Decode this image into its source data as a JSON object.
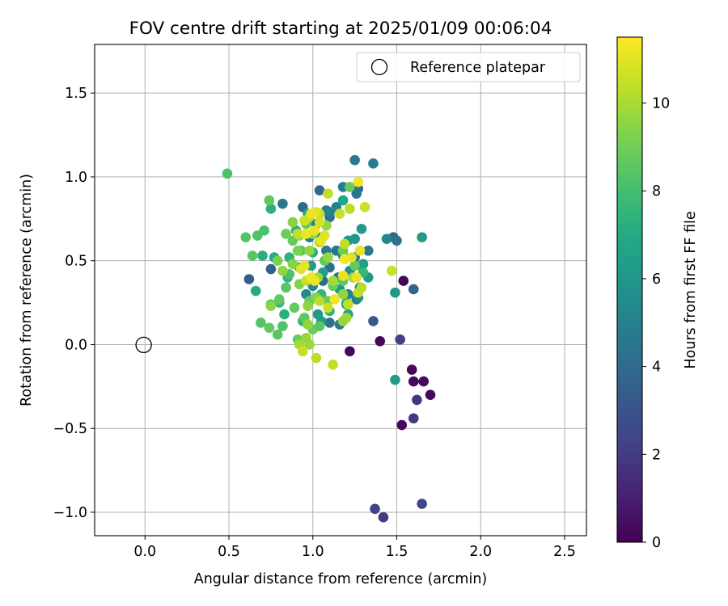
{
  "chart_data": {
    "type": "scatter",
    "title": "FOV centre drift starting at 2025/01/09 00:06:04",
    "xlabel": "Angular distance from reference (arcmin)",
    "ylabel": "Rotation from reference (arcmin)",
    "xlim": [
      -0.3,
      2.63
    ],
    "ylim": [
      -1.14,
      1.79
    ],
    "xticks": [
      0.0,
      0.5,
      1.0,
      1.5,
      2.0,
      2.5
    ],
    "yticks": [
      -1.0,
      -0.5,
      0.0,
      0.5,
      1.0,
      1.5
    ],
    "xtick_labels": [
      "0.0",
      "0.5",
      "1.0",
      "1.5",
      "2.0",
      "2.5"
    ],
    "ytick_labels": [
      "−1.0",
      "−0.5",
      "0.0",
      "0.5",
      "1.0",
      "1.5"
    ],
    "grid": true,
    "legend": {
      "position": "top-right",
      "entries": [
        "Reference platepar"
      ]
    },
    "reference_point": {
      "x": 0.0,
      "y": 0.0,
      "label": "Reference platepar"
    },
    "colormap": "viridis",
    "colorbar": {
      "label": "Hours from first FF file",
      "range": [
        0,
        11.5
      ],
      "ticks": [
        0,
        2,
        4,
        6,
        8,
        10
      ],
      "tick_labels": [
        "0",
        "2",
        "4",
        "6",
        "8",
        "10"
      ]
    },
    "points": [
      [
        1.54,
        0.38,
        0.2
      ],
      [
        1.4,
        0.02,
        0.2
      ],
      [
        1.22,
        -0.04,
        0.2
      ],
      [
        1.59,
        -0.15,
        0.3
      ],
      [
        1.6,
        -0.22,
        0.3
      ],
      [
        1.66,
        -0.22,
        0.3
      ],
      [
        1.7,
        -0.3,
        0.3
      ],
      [
        1.53,
        -0.48,
        0.3
      ],
      [
        1.62,
        -0.33,
        1.8
      ],
      [
        1.6,
        -0.44,
        1.9
      ],
      [
        1.52,
        0.03,
        2.2
      ],
      [
        1.37,
        -0.98,
        2.3
      ],
      [
        1.42,
        -1.03,
        2.0
      ],
      [
        1.65,
        -0.95,
        2.4
      ],
      [
        1.36,
        0.14,
        3.2
      ],
      [
        0.62,
        0.39,
        3.3
      ],
      [
        0.75,
        0.45,
        3.5
      ],
      [
        1.04,
        0.92,
        3.8
      ],
      [
        0.94,
        0.82,
        3.9
      ],
      [
        1.27,
        0.93,
        4.0
      ],
      [
        1.6,
        0.33,
        3.6
      ],
      [
        1.48,
        0.64,
        3.6
      ],
      [
        1.25,
        1.1,
        4.6
      ],
      [
        1.36,
        1.08,
        4.7
      ],
      [
        1.18,
        0.94,
        4.8
      ],
      [
        1.08,
        0.8,
        4.7
      ],
      [
        1.26,
        0.9,
        4.5
      ],
      [
        0.82,
        0.84,
        4.6
      ],
      [
        1.1,
        0.76,
        4.2
      ],
      [
        1.02,
        0.72,
        4.3
      ],
      [
        1.1,
        0.46,
        4.2
      ],
      [
        1.06,
        0.38,
        4.1
      ],
      [
        1.15,
        0.4,
        4.4
      ],
      [
        1.28,
        0.34,
        4.6
      ],
      [
        1.33,
        0.56,
        4.5
      ],
      [
        1.1,
        0.13,
        4.4
      ],
      [
        1.16,
        0.12,
        4.6
      ],
      [
        1.2,
        0.24,
        4.8
      ],
      [
        1.26,
        0.27,
        4.7
      ],
      [
        1.14,
        0.56,
        4.5
      ],
      [
        0.98,
        0.64,
        4.9
      ],
      [
        1.08,
        0.56,
        4.8
      ],
      [
        1.25,
        0.52,
        4.3
      ],
      [
        1.5,
        0.62,
        4.5
      ],
      [
        1.29,
        0.47,
        4.4
      ],
      [
        1.21,
        0.3,
        4.9
      ],
      [
        1.44,
        0.63,
        5.2
      ],
      [
        1.18,
        0.53,
        5.4
      ],
      [
        1.22,
        0.44,
        5.6
      ],
      [
        1.0,
        0.35,
        5.3
      ],
      [
        1.27,
        0.28,
        5.5
      ],
      [
        0.96,
        0.3,
        5.4
      ],
      [
        1.05,
        0.64,
        5.3
      ],
      [
        1.1,
        0.79,
        5.0
      ],
      [
        1.14,
        0.82,
        5.1
      ],
      [
        1.65,
        0.64,
        6.2
      ],
      [
        1.33,
        0.4,
        6.1
      ],
      [
        1.49,
        0.31,
        6.0
      ],
      [
        1.49,
        -0.21,
        6.3
      ],
      [
        1.21,
        0.62,
        6.0
      ],
      [
        1.29,
        0.69,
        6.2
      ],
      [
        1.25,
        0.63,
        6.1
      ],
      [
        1.3,
        0.48,
        6.4
      ],
      [
        1.05,
        0.14,
        6.3
      ],
      [
        1.03,
        0.18,
        6.2
      ],
      [
        0.99,
        0.47,
        6.5
      ],
      [
        1.06,
        0.43,
        6.4
      ],
      [
        1.16,
        0.33,
        6.2
      ],
      [
        1.21,
        0.18,
        6.6
      ],
      [
        0.97,
        0.78,
        6.7
      ],
      [
        1.18,
        0.86,
        6.8
      ],
      [
        0.66,
        0.32,
        7.0
      ],
      [
        0.83,
        0.18,
        7.2
      ],
      [
        0.75,
        0.81,
        7.3
      ],
      [
        0.77,
        0.52,
        7.1
      ],
      [
        0.86,
        0.52,
        7.4
      ],
      [
        0.92,
        0.46,
        7.3
      ],
      [
        0.94,
        0.14,
        7.5
      ],
      [
        0.8,
        0.25,
        7.6
      ],
      [
        1.1,
        0.2,
        7.4
      ],
      [
        1.05,
        0.3,
        7.5
      ],
      [
        1.2,
        0.25,
        7.3
      ],
      [
        1.3,
        0.43,
        7.6
      ],
      [
        0.7,
        0.53,
        7.2
      ],
      [
        0.85,
        0.4,
        7.5
      ],
      [
        0.9,
        0.68,
        7.4
      ],
      [
        1.0,
        0.55,
        7.2
      ],
      [
        0.49,
        1.02,
        8.2
      ],
      [
        0.6,
        0.64,
        8.4
      ],
      [
        0.64,
        0.53,
        8.5
      ],
      [
        0.67,
        0.65,
        8.3
      ],
      [
        0.71,
        0.68,
        8.2
      ],
      [
        0.74,
        0.86,
        8.6
      ],
      [
        0.75,
        0.24,
        8.4
      ],
      [
        0.82,
        0.11,
        8.3
      ],
      [
        0.84,
        0.34,
        8.5
      ],
      [
        0.86,
        0.42,
        8.2
      ],
      [
        0.74,
        0.1,
        8.6
      ],
      [
        0.69,
        0.13,
        8.4
      ],
      [
        0.8,
        0.27,
        8.7
      ],
      [
        0.79,
        0.06,
        8.5
      ],
      [
        0.91,
        0.03,
        8.8
      ],
      [
        0.89,
        0.22,
        8.7
      ],
      [
        0.95,
        0.16,
        8.6
      ],
      [
        1.0,
        0.09,
        8.9
      ],
      [
        0.98,
        0.26,
        8.8
      ],
      [
        1.04,
        0.11,
        8.5
      ],
      [
        1.09,
        0.26,
        8.7
      ],
      [
        1.12,
        0.35,
        8.9
      ],
      [
        1.18,
        0.38,
        8.6
      ],
      [
        1.22,
        0.94,
        8.8
      ],
      [
        0.88,
        0.62,
        8.7
      ],
      [
        0.84,
        0.66,
        8.9
      ],
      [
        0.93,
        0.56,
        8.5
      ],
      [
        0.96,
        0.72,
        8.8
      ],
      [
        1.07,
        0.5,
        8.6
      ],
      [
        1.18,
        0.56,
        8.9
      ],
      [
        1.25,
        0.47,
        8.7
      ],
      [
        0.79,
        0.5,
        9.2
      ],
      [
        0.88,
        0.73,
        9.4
      ],
      [
        0.92,
        0.36,
        9.3
      ],
      [
        0.75,
        0.23,
        9.5
      ],
      [
        0.82,
        0.44,
        9.6
      ],
      [
        0.88,
        0.48,
        9.4
      ],
      [
        0.97,
        0.23,
        9.5
      ],
      [
        1.02,
        0.28,
        9.3
      ],
      [
        0.98,
        0.56,
        9.6
      ],
      [
        0.91,
        0.56,
        9.2
      ],
      [
        0.98,
        0.0,
        9.8
      ],
      [
        0.96,
        0.04,
        9.7
      ],
      [
        0.92,
        0.0,
        9.9
      ],
      [
        0.97,
        0.12,
        9.6
      ],
      [
        1.03,
        0.4,
        9.8
      ],
      [
        1.09,
        0.52,
        9.7
      ],
      [
        1.12,
        0.38,
        9.9
      ],
      [
        1.18,
        0.3,
        9.6
      ],
      [
        1.2,
        0.16,
        9.8
      ],
      [
        1.18,
        0.14,
        9.7
      ],
      [
        1.24,
        0.4,
        9.9
      ],
      [
        1.08,
        0.71,
        9.6
      ],
      [
        1.0,
        0.66,
        9.5
      ],
      [
        0.92,
        0.65,
        9.7
      ],
      [
        1.04,
        0.61,
        10.2
      ],
      [
        1.12,
        -0.12,
        10.4
      ],
      [
        1.02,
        -0.08,
        10.3
      ],
      [
        0.94,
        -0.04,
        10.5
      ],
      [
        1.09,
        0.9,
        10.4
      ],
      [
        1.31,
        0.82,
        10.6
      ],
      [
        1.22,
        0.81,
        10.3
      ],
      [
        1.16,
        0.78,
        10.5
      ],
      [
        1.04,
        0.78,
        10.4
      ],
      [
        0.98,
        0.76,
        10.2
      ],
      [
        0.95,
        0.74,
        10.6
      ],
      [
        0.91,
        0.66,
        10.4
      ],
      [
        0.96,
        0.38,
        10.5
      ],
      [
        1.04,
        0.26,
        10.3
      ],
      [
        1.09,
        0.22,
        10.6
      ],
      [
        1.21,
        0.24,
        10.4
      ],
      [
        1.27,
        0.31,
        10.5
      ],
      [
        1.29,
        0.34,
        10.3
      ],
      [
        1.47,
        0.44,
        10.6
      ],
      [
        1.19,
        0.6,
        10.4
      ],
      [
        1.04,
        0.73,
        10.8
      ],
      [
        1.02,
        0.79,
        11.0
      ],
      [
        0.99,
        0.78,
        11.2
      ],
      [
        1.27,
        0.97,
        11.3
      ],
      [
        1.28,
        0.56,
        11.1
      ],
      [
        1.26,
        0.4,
        11.2
      ],
      [
        1.23,
        0.52,
        11.0
      ],
      [
        1.19,
        0.51,
        11.3
      ],
      [
        1.01,
        0.68,
        11.1
      ],
      [
        0.96,
        0.66,
        11.2
      ],
      [
        0.93,
        0.45,
        11.0
      ],
      [
        0.99,
        0.4,
        11.3
      ],
      [
        0.95,
        0.47,
        11.1
      ],
      [
        1.05,
        0.62,
        11.2
      ],
      [
        1.07,
        0.65,
        11.0
      ],
      [
        1.13,
        0.27,
        11.3
      ],
      [
        1.18,
        0.41,
        11.1
      ],
      [
        1.01,
        0.38,
        11.2
      ]
    ]
  }
}
